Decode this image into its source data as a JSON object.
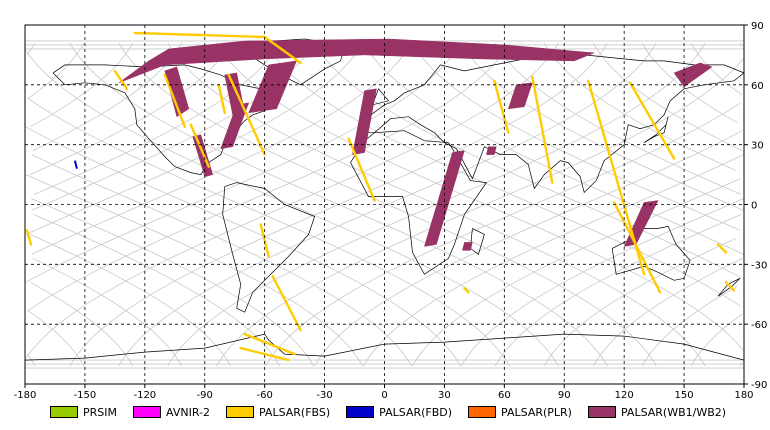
{
  "chart_data": {
    "type": "map",
    "projection": "equirectangular",
    "xlim": [
      -180,
      180
    ],
    "ylim": [
      -90,
      90
    ],
    "x_ticks": [
      -180,
      -150,
      -120,
      -90,
      -60,
      -30,
      0,
      30,
      60,
      90,
      120,
      150,
      180
    ],
    "y_ticks": [
      90,
      60,
      30,
      0,
      -30,
      -60,
      -90
    ],
    "grid": "dashed every 30 degrees",
    "colors": {
      "background": "#ffffff",
      "coastline": "#000000",
      "orbit_track": "#c8c8c8",
      "grid": "#000000"
    },
    "legend": [
      {
        "label": "PRSIM",
        "color": "#99cc00"
      },
      {
        "label": "AVNIR-2",
        "color": "#ff00ff"
      },
      {
        "label": "PALSAR(FBS)",
        "color": "#ffcc00"
      },
      {
        "label": "PALSAR(FBD)",
        "color": "#0000cc"
      },
      {
        "label": "PALSAR(PLR)",
        "color": "#ff6600"
      },
      {
        "label": "PALSAR(WB1/WB2)",
        "color": "#993366"
      }
    ],
    "wb_swaths": [
      {
        "lon": [
          -118,
          -108,
          -70,
          2,
          60,
          105,
          95,
          48,
          -10,
          -60,
          -110,
          -133
        ],
        "lat": [
          72,
          78,
          82,
          83,
          80,
          76,
          72,
          73,
          75,
          73,
          70,
          61
        ]
      },
      {
        "lon": [
          -110,
          -104,
          -98,
          -104
        ],
        "lat": [
          67,
          69,
          48,
          44
        ]
      },
      {
        "lon": [
          -80,
          -74,
          -70,
          -76
        ],
        "lat": [
          65,
          66,
          46,
          45
        ]
      },
      {
        "lon": [
          -74,
          -68,
          -76,
          -82
        ],
        "lat": [
          50,
          51,
          29,
          28
        ]
      },
      {
        "lon": [
          -96,
          -92,
          -86,
          -90
        ],
        "lat": [
          34,
          35,
          15,
          14
        ]
      },
      {
        "lon": [
          -58,
          -44,
          -54,
          -68
        ],
        "lat": [
          70,
          72,
          48,
          46
        ]
      },
      {
        "lon": [
          -10,
          -4,
          -10,
          -16
        ],
        "lat": [
          57,
          58,
          26,
          25
        ]
      },
      {
        "lon": [
          34,
          40,
          26,
          20
        ],
        "lat": [
          26,
          27,
          -20,
          -21
        ]
      },
      {
        "lon": [
          66,
          74,
          70,
          62
        ],
        "lat": [
          60,
          61,
          49,
          48
        ]
      },
      {
        "lon": [
          52,
          56,
          55,
          51
        ],
        "lat": [
          29,
          29,
          25,
          25
        ]
      },
      {
        "lon": [
          40,
          44,
          43,
          39
        ],
        "lat": [
          -19,
          -19,
          -23,
          -23
        ]
      },
      {
        "lon": [
          130,
          137,
          126,
          120
        ],
        "lat": [
          1,
          2,
          -20,
          -21
        ]
      },
      {
        "lon": [
          145,
          158,
          164,
          150
        ],
        "lat": [
          66,
          71,
          69,
          59
        ]
      }
    ],
    "fbs_tracks": [
      {
        "lon": [
          -125,
          -60,
          -42
        ],
        "lat": [
          86,
          84,
          71
        ]
      },
      {
        "lon": [
          -135,
          -129
        ],
        "lat": [
          67,
          58
        ]
      },
      {
        "lon": [
          -110,
          -100
        ],
        "lat": [
          65,
          39
        ]
      },
      {
        "lon": [
          -78,
          -60
        ],
        "lat": [
          65,
          25
        ]
      },
      {
        "lon": [
          -83,
          -80
        ],
        "lat": [
          60,
          46
        ]
      },
      {
        "lon": [
          -97,
          -88
        ],
        "lat": [
          40,
          19
        ]
      },
      {
        "lon": [
          -18,
          -5
        ],
        "lat": [
          33,
          2
        ]
      },
      {
        "lon": [
          55,
          62
        ],
        "lat": [
          62,
          36
        ]
      },
      {
        "lon": [
          74,
          84
        ],
        "lat": [
          64,
          11
        ]
      },
      {
        "lon": [
          102,
          130
        ],
        "lat": [
          62,
          -35
        ]
      },
      {
        "lon": [
          123,
          145
        ],
        "lat": [
          61,
          23
        ]
      },
      {
        "lon": [
          115,
          138
        ],
        "lat": [
          1,
          -44
        ]
      },
      {
        "lon": [
          -56,
          -42
        ],
        "lat": [
          -36,
          -63
        ]
      },
      {
        "lon": [
          -70,
          -45
        ],
        "lat": [
          -65,
          -75
        ]
      },
      {
        "lon": [
          -72,
          -48
        ],
        "lat": [
          -72,
          -78
        ]
      },
      {
        "lon": [
          -62,
          -58
        ],
        "lat": [
          -10,
          -26
        ]
      },
      {
        "lon": [
          -179,
          -177
        ],
        "lat": [
          -13,
          -20
        ]
      },
      {
        "lon": [
          167,
          171
        ],
        "lat": [
          -20,
          -24
        ]
      },
      {
        "lon": [
          171,
          175
        ],
        "lat": [
          -39,
          -43
        ]
      },
      {
        "lon": [
          40,
          42
        ],
        "lat": [
          -42,
          -44
        ]
      }
    ],
    "fbd_tracks": [
      {
        "lon": [
          -155,
          -154
        ],
        "lat": [
          22,
          18
        ]
      }
    ]
  },
  "legend_title": ""
}
